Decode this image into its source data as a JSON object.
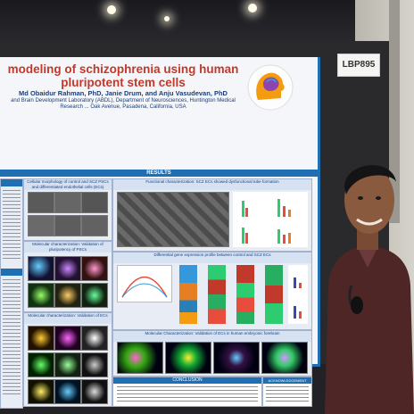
{
  "poster": {
    "title": "modeling of schizophrenia using human pluripotent stem cells",
    "authors": "Md Obaidur Rahman, PhD, Janie Drum, and Anju Vasudevan, PhD",
    "affiliation_line1": "and Brain Development Laboratory (ABDL), Department of Neurosciences, Huntington Medical",
    "affiliation_line2": "Research ... Oak Avenue, Pasadena, California, USA",
    "results_header": "RESULTS",
    "panel1_title": "Cellular morphology of control and SCZ PSCs and differentiated endothelial cells (ECs)",
    "panel2_title": "Functional characterization: SCZ ECs showed dysfunctional tube formation",
    "panel3_title": "Molecular characterization: Validation of pluripotency of PSCs",
    "panel4_title": "Differential gene expression profile between control and SCZ ECs",
    "panel5_title": "Molecular characterization: Validation of ECs",
    "panel6_title": "Molecular Characterization: Validation of ECs in human embryonic forebrain",
    "conclusion_header": "CONCLUSION",
    "ack_header": "ACKNOWLEDGEMENT"
  },
  "booth_tag": "LBP895"
}
